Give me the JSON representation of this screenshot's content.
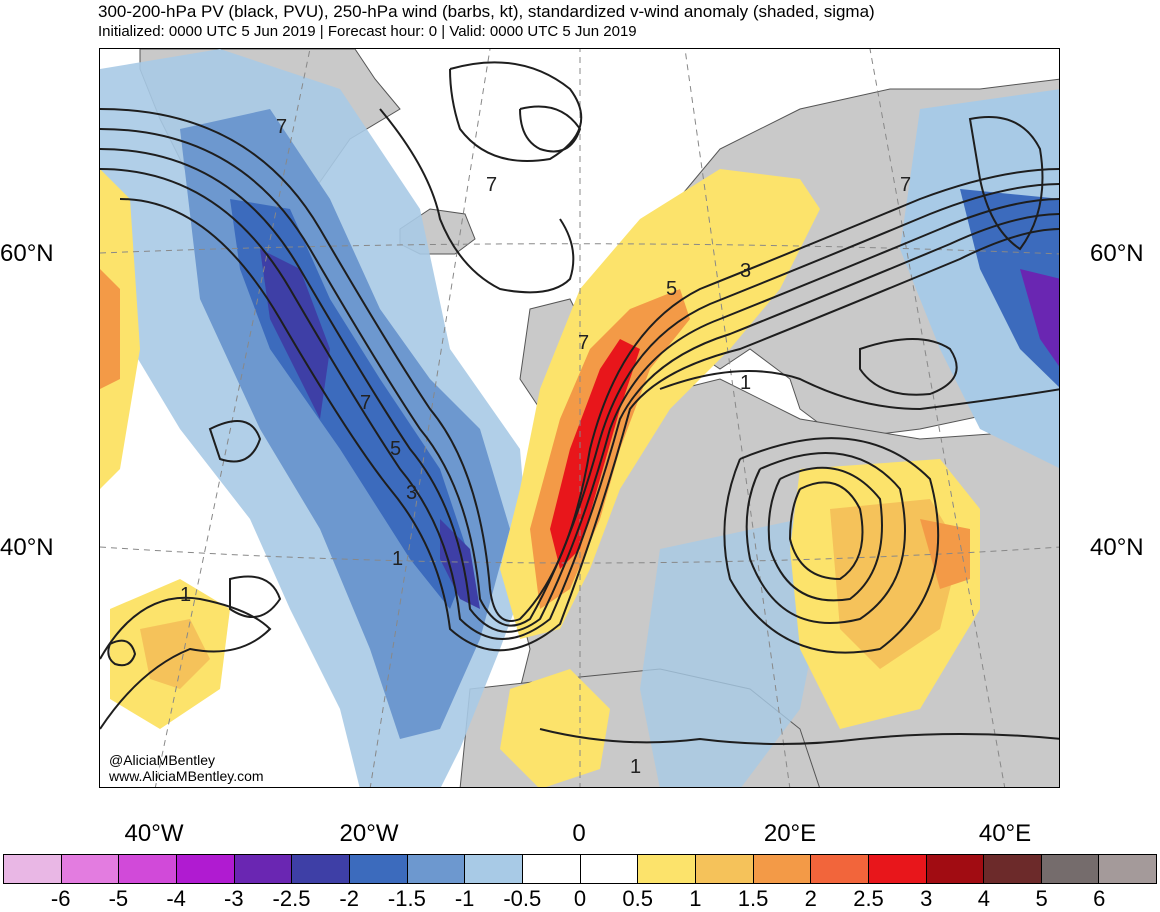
{
  "title": "300-200-hPa PV (black, PVU), 250-hPa wind (barbs, kt), standardized v-wind anomaly (shaded, sigma)",
  "subtitle": "Initialized: 0000 UTC 5 Jun 2019 | Forecast hour: 0 | Valid: 0000 UTC 5 Jun 2019",
  "credit": {
    "handle": "@AliciaMBentley",
    "website": "www.AliciaMBentley.com"
  },
  "latitude_labels": [
    "60°N",
    "40°N"
  ],
  "longitude_labels": [
    "40°W",
    "20°W",
    "0",
    "20°E",
    "40°E"
  ],
  "contour_labels": [
    "7",
    "7",
    "7",
    "5",
    "3",
    "1",
    "7",
    "5",
    "3",
    "1",
    "1",
    "1",
    "7"
  ],
  "colorbar": {
    "colors": [
      "#e9b7e5",
      "#e37ce0",
      "#d14ad9",
      "#b01bd1",
      "#6a26b2",
      "#3e3fa6",
      "#3c6bbd",
      "#6d98cf",
      "#a8cae6",
      "#ffffff",
      "#ffffff",
      "#fce36b",
      "#f5c25a",
      "#f39a47",
      "#f2653b",
      "#e8161b",
      "#a10c12",
      "#6c2a2a",
      "#756c6c",
      "#a49a9a"
    ],
    "tick_labels": [
      "-6",
      "-5",
      "-4",
      "-3",
      "-2.5",
      "-2",
      "-1.5",
      "-1",
      "-0.5",
      "0",
      "0.5",
      "1",
      "1.5",
      "2",
      "2.5",
      "3",
      "4",
      "5",
      "6"
    ]
  },
  "colors": {
    "land": "#c9c9c9",
    "coastline": "#555555",
    "contour": "#1e1e1e",
    "gridline": "#888888"
  }
}
